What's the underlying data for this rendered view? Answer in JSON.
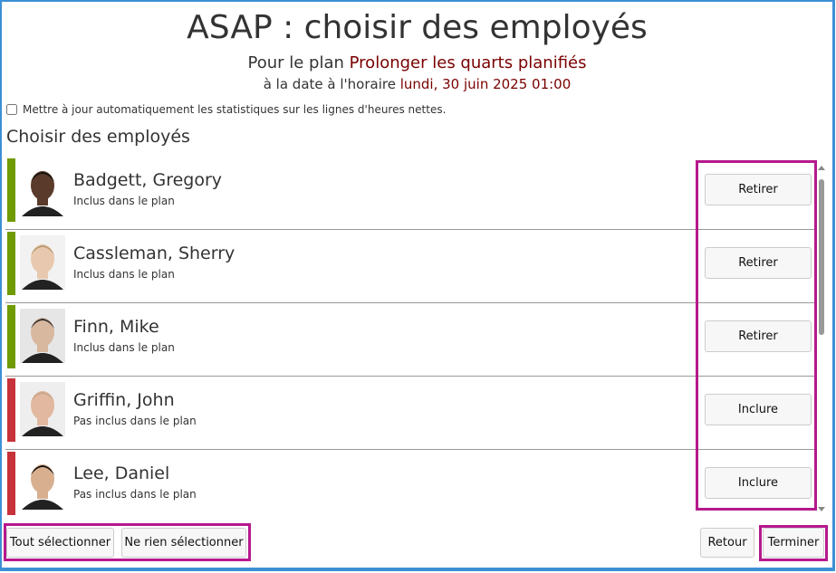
{
  "header": {
    "title": "ASAP : choisir des employés",
    "plan_label": "Pour le plan",
    "plan_name": "Prolonger les quarts planifiés",
    "date_label": "à la date à l'horaire",
    "date_value": "lundi, 30 juin 2025 01:00"
  },
  "options": {
    "auto_update_label": "Mettre à jour automatiquement les statistiques sur les lignes d'heures nettes.",
    "auto_update_checked": false
  },
  "section_title": "Choisir des employés",
  "employees": [
    {
      "name": "Badgett, Gregory",
      "status": "Inclus dans le plan",
      "button": "Retirer",
      "color": "#6f9a00"
    },
    {
      "name": "Cassleman, Sherry",
      "status": "Inclus dans le plan",
      "button": "Retirer",
      "color": "#6f9a00"
    },
    {
      "name": "Finn, Mike",
      "status": "Inclus dans le plan",
      "button": "Retirer",
      "color": "#6f9a00"
    },
    {
      "name": "Griffin, John",
      "status": "Pas inclus dans le plan",
      "button": "Inclure",
      "color": "#c8323a"
    },
    {
      "name": "Lee, Daniel",
      "status": "Pas inclus dans le plan",
      "button": "Inclure",
      "color": "#c8323a"
    }
  ],
  "footer": {
    "select_all": "Tout sélectionner",
    "select_none": "Ne rien sélectionner",
    "back": "Retour",
    "finish": "Terminer"
  }
}
